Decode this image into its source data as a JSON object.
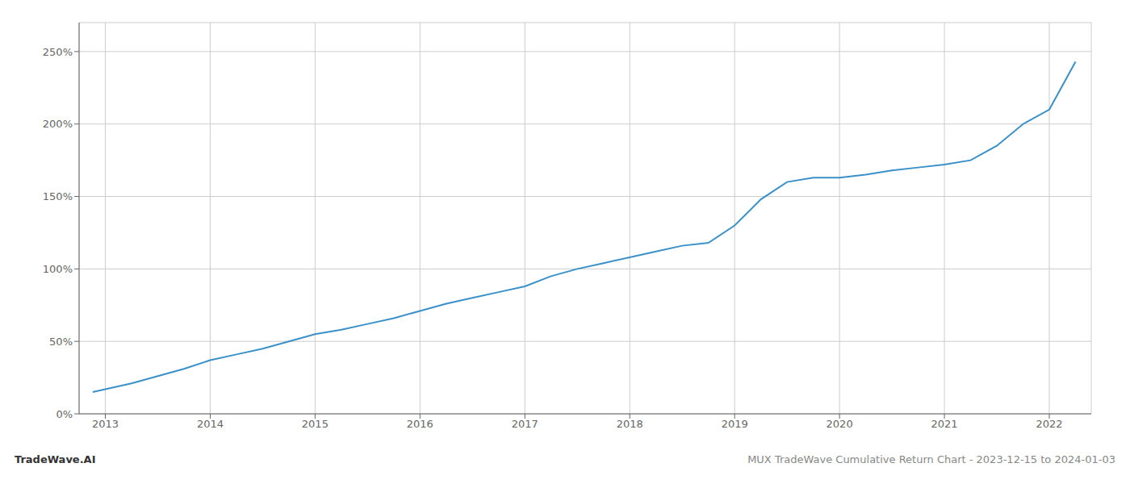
{
  "chart_data": {
    "type": "line",
    "title": "MUX TradeWave Cumulative Return Chart - 2023-12-15 to 2024-01-03",
    "annotations": [
      "TradeWave.AI"
    ],
    "x": [
      2012.88,
      2013.0,
      2013.25,
      2013.5,
      2013.75,
      2014.0,
      2014.25,
      2014.5,
      2014.75,
      2015.0,
      2015.25,
      2015.5,
      2015.75,
      2016.0,
      2016.25,
      2016.5,
      2016.75,
      2017.0,
      2017.25,
      2017.5,
      2017.75,
      2018.0,
      2018.25,
      2018.5,
      2018.75,
      2019.0,
      2019.25,
      2019.5,
      2019.75,
      2020.0,
      2020.25,
      2020.5,
      2020.75,
      2021.0,
      2021.25,
      2021.5,
      2021.75,
      2022.0,
      2022.25
    ],
    "values": [
      15,
      17,
      21,
      26,
      31,
      37,
      41,
      45,
      50,
      55,
      58,
      62,
      66,
      71,
      76,
      80,
      84,
      88,
      95,
      100,
      104,
      108,
      112,
      116,
      118,
      130,
      148,
      160,
      163,
      163,
      165,
      168,
      170,
      172,
      175,
      185,
      200,
      210,
      243
    ],
    "color": "#3a90c8",
    "xlim": [
      2012.75,
      2022.4
    ],
    "xticks": [
      2013,
      2014,
      2015,
      2016,
      2017,
      2018,
      2019,
      2020,
      2021,
      2022
    ],
    "ylim": [
      0,
      270
    ],
    "yticks": [
      {
        "value": 0,
        "label": "0%"
      },
      {
        "value": 50,
        "label": "50%"
      },
      {
        "value": 100,
        "label": "100%"
      },
      {
        "value": 150,
        "label": "150%"
      },
      {
        "value": 200,
        "label": "200%"
      },
      {
        "value": 250,
        "label": "250%"
      }
    ],
    "grid": true
  }
}
